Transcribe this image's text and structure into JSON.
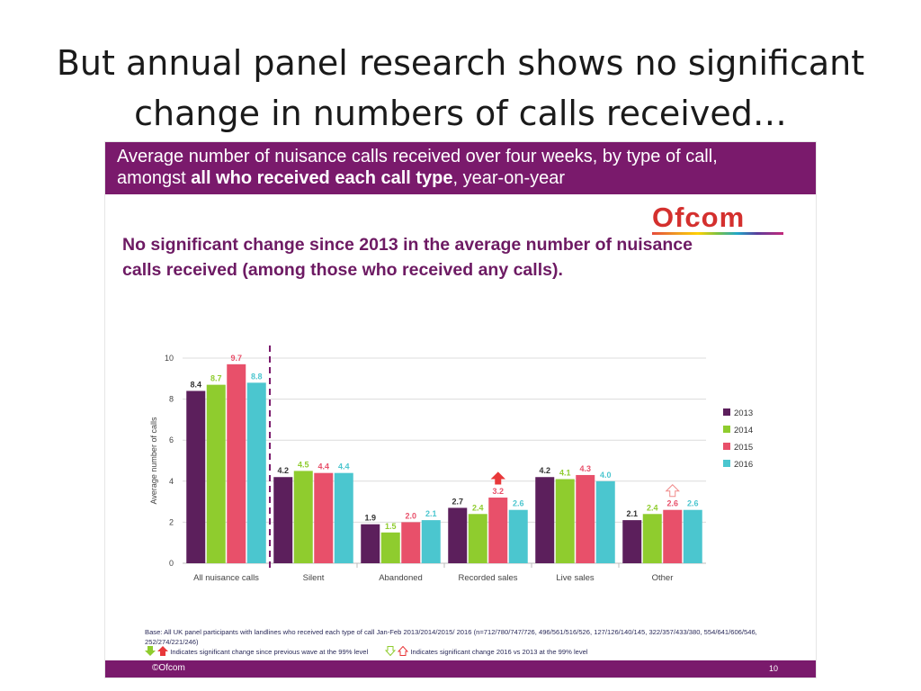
{
  "slide": {
    "title_line1": "But annual panel research shows no significant",
    "title_line2": "change in numbers of calls received…"
  },
  "panel": {
    "header_line1": "Average number of nuisance calls received over four weeks, by type of call,",
    "header_line2_pre": "amongst ",
    "header_line2_bold": "all who received each call type",
    "header_line2_post": ", year-on-year",
    "logo": "Ofcom",
    "subhead_line1": "No significant change since 2013 in the average number of nuisance",
    "subhead_line2": "calls received (among those who received any calls).",
    "base_note": "Base: All UK panel participants with landlines who received each type of call Jan-Feb 2013/2014/2015/ 2016 (n=712/780/747/726, 496/561/516/526, 127/126/140/145, 322/357/433/380, 554/641/606/546, 252/274/221/246)",
    "legend_note_a": "Indicates significant change since previous wave at the 99% level",
    "legend_note_b": "Indicates significant change  2016 vs 2013 at the 99% level",
    "footer_copy": "©Ofcom",
    "footer_page": "10"
  },
  "colors": {
    "header": "#7a1a6c",
    "s2013": "#5c1f5c",
    "s2014": "#8fcc2e",
    "s2015": "#e8506a",
    "s2016": "#4bc6cf",
    "arrow_sig_prev": "#e8383a",
    "arrow_sig_2013": "#f08a8a"
  },
  "chart_data": {
    "type": "bar",
    "categories": [
      "All nuisance calls",
      "Silent",
      "Abandoned",
      "Recorded sales",
      "Live sales",
      "Other"
    ],
    "series": [
      {
        "name": "2013",
        "values": [
          8.4,
          4.2,
          1.9,
          2.7,
          4.2,
          2.1
        ],
        "labels": [
          "8.4",
          "4.2",
          "1.9",
          "2.7",
          "4.2",
          "2.1"
        ]
      },
      {
        "name": "2014",
        "values": [
          8.7,
          4.5,
          1.5,
          2.4,
          4.1,
          2.4
        ],
        "labels": [
          "8.7",
          "4.5",
          "1.5",
          "2.4",
          "4.1",
          "2.4"
        ]
      },
      {
        "name": "2015",
        "values": [
          9.7,
          4.4,
          2.0,
          3.2,
          4.3,
          2.6
        ],
        "labels": [
          "9.7",
          "4.4",
          "2.0",
          "3.2",
          "4.3",
          "2.6"
        ]
      },
      {
        "name": "2016",
        "values": [
          8.8,
          4.4,
          2.1,
          2.6,
          4.0,
          2.6
        ],
        "labels": [
          "8.8",
          "4.4",
          "2.1",
          "2.6",
          "4.0",
          "2.6"
        ]
      }
    ],
    "ylabel": "Average number of calls",
    "ylim": [
      0,
      10
    ],
    "yticks": [
      "0",
      "2",
      "4",
      "6",
      "8",
      "10"
    ],
    "grid": true,
    "legend_position": "right",
    "significance_markers": [
      {
        "category": "Recorded sales",
        "series": "2015",
        "type": "significant change since previous wave"
      },
      {
        "category": "Other",
        "series": "2015",
        "type": "significant change 2016 vs 2013"
      }
    ]
  }
}
